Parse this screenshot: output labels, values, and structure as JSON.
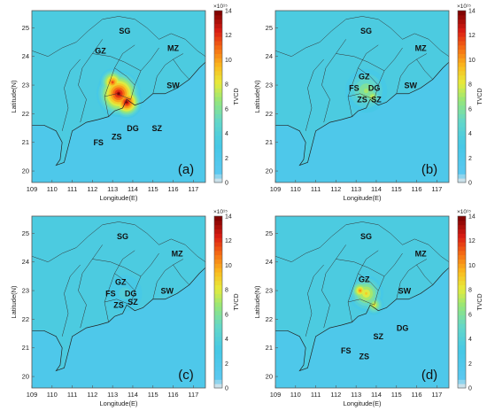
{
  "chart_data": [
    {
      "type": "heatmap",
      "panel_label": "(a)",
      "xlabel": "Longitude(E)",
      "ylabel": "Latitude(N)",
      "xlim": [
        109,
        117.6
      ],
      "ylim": [
        19.6,
        25.6
      ],
      "x_ticks": [
        "109",
        "110",
        "111",
        "112",
        "113",
        "114",
        "115",
        "116",
        "117"
      ],
      "y_ticks": [
        "20",
        "21",
        "22",
        "23",
        "24",
        "25"
      ],
      "colorbar": {
        "label": "TVCD",
        "exponent": "×10¹⁵",
        "range": [
          0,
          14
        ],
        "ticks": [
          "0",
          "2",
          "4",
          "6",
          "8",
          "10",
          "12",
          "14"
        ]
      },
      "hotspots": [
        {
          "lon": 113.3,
          "lat": 22.7,
          "value": 14,
          "spread": 1.0
        },
        {
          "lon": 113.7,
          "lat": 22.4,
          "value": 14,
          "spread": 0.7
        },
        {
          "lon": 113.0,
          "lat": 23.1,
          "value": 12,
          "spread": 0.6
        }
      ],
      "regions": [
        {
          "name": "SG",
          "lon": 113.6,
          "lat": 24.8
        },
        {
          "name": "GZ",
          "lon": 112.4,
          "lat": 24.1
        },
        {
          "name": "MZ",
          "lon": 116.0,
          "lat": 24.2
        },
        {
          "name": "SW",
          "lon": 116.0,
          "lat": 22.9
        },
        {
          "name": "FS",
          "lon": 112.3,
          "lat": 20.9
        },
        {
          "name": "ZS",
          "lon": 113.2,
          "lat": 21.1
        },
        {
          "name": "DG",
          "lon": 114.0,
          "lat": 21.4
        },
        {
          "name": "SZ",
          "lon": 115.2,
          "lat": 21.4
        }
      ]
    },
    {
      "type": "heatmap",
      "panel_label": "(b)",
      "xlabel": "Longitude(E)",
      "ylabel": "Latitude(N)",
      "xlim": [
        109,
        117.6
      ],
      "ylim": [
        19.6,
        25.6
      ],
      "x_ticks": [
        "109",
        "110",
        "111",
        "112",
        "113",
        "114",
        "115",
        "116",
        "117"
      ],
      "y_ticks": [
        "20",
        "21",
        "22",
        "23",
        "24",
        "25"
      ],
      "colorbar": {
        "label": "TVCD",
        "exponent": "×10¹⁵",
        "range": [
          0,
          14
        ],
        "ticks": [
          "0",
          "2",
          "4",
          "6",
          "8",
          "10",
          "12",
          "14"
        ]
      },
      "hotspots": [
        {
          "lon": 113.5,
          "lat": 22.8,
          "value": 7.5,
          "spread": 1.0
        },
        {
          "lon": 113.8,
          "lat": 22.6,
          "value": 8.5,
          "spread": 0.45
        }
      ],
      "regions": [
        {
          "name": "SG",
          "lon": 113.5,
          "lat": 24.8
        },
        {
          "name": "MZ",
          "lon": 116.2,
          "lat": 24.2
        },
        {
          "name": "GZ",
          "lon": 113.4,
          "lat": 23.2
        },
        {
          "name": "FS",
          "lon": 112.9,
          "lat": 22.8
        },
        {
          "name": "DG",
          "lon": 113.9,
          "lat": 22.8
        },
        {
          "name": "ZS",
          "lon": 113.3,
          "lat": 22.4
        },
        {
          "name": "SZ",
          "lon": 114.0,
          "lat": 22.4
        },
        {
          "name": "SW",
          "lon": 115.7,
          "lat": 22.9
        }
      ]
    },
    {
      "type": "heatmap",
      "panel_label": "(c)",
      "xlabel": "Longitude(E)",
      "ylabel": "Latitude(N)",
      "xlim": [
        109,
        117.6
      ],
      "ylim": [
        19.6,
        25.6
      ],
      "x_ticks": [
        "109",
        "110",
        "111",
        "112",
        "113",
        "114",
        "115",
        "116",
        "117"
      ],
      "y_ticks": [
        "20",
        "21",
        "22",
        "23",
        "24",
        "25"
      ],
      "colorbar": {
        "label": "TVCD",
        "exponent": "×10¹⁵",
        "range": [
          0,
          14
        ],
        "ticks": [
          "0",
          "2",
          "4",
          "6",
          "8",
          "10",
          "12",
          "14"
        ]
      },
      "hotspots": [
        {
          "lon": 113.6,
          "lat": 22.9,
          "value": 4.5,
          "spread": 1.0
        }
      ],
      "regions": [
        {
          "name": "SG",
          "lon": 113.5,
          "lat": 24.8
        },
        {
          "name": "MZ",
          "lon": 116.2,
          "lat": 24.2
        },
        {
          "name": "GZ",
          "lon": 113.4,
          "lat": 23.2
        },
        {
          "name": "FS",
          "lon": 112.9,
          "lat": 22.8
        },
        {
          "name": "DG",
          "lon": 113.9,
          "lat": 22.8
        },
        {
          "name": "ZS",
          "lon": 113.3,
          "lat": 22.4
        },
        {
          "name": "SZ",
          "lon": 114.0,
          "lat": 22.5
        },
        {
          "name": "SW",
          "lon": 115.7,
          "lat": 22.9
        }
      ]
    },
    {
      "type": "heatmap",
      "panel_label": "(d)",
      "xlabel": "Longitude(E)",
      "ylabel": "Latitude(N)",
      "xlim": [
        109,
        117.6
      ],
      "ylim": [
        19.6,
        25.6
      ],
      "x_ticks": [
        "109",
        "110",
        "111",
        "112",
        "113",
        "114",
        "115",
        "116",
        "117"
      ],
      "y_ticks": [
        "20",
        "21",
        "22",
        "23",
        "24",
        "25"
      ],
      "colorbar": {
        "label": "TVCD",
        "exponent": "×10¹⁵",
        "range": [
          0,
          14
        ],
        "ticks": [
          "0",
          "2",
          "4",
          "6",
          "8",
          "10",
          "12",
          "14"
        ]
      },
      "hotspots": [
        {
          "lon": 113.5,
          "lat": 22.9,
          "value": 9.5,
          "spread": 0.8
        },
        {
          "lon": 113.2,
          "lat": 23.0,
          "value": 11,
          "spread": 0.45
        },
        {
          "lon": 113.9,
          "lat": 22.5,
          "value": 9,
          "spread": 0.45
        }
      ],
      "regions": [
        {
          "name": "SG",
          "lon": 113.5,
          "lat": 24.8
        },
        {
          "name": "MZ",
          "lon": 116.2,
          "lat": 24.2
        },
        {
          "name": "GZ",
          "lon": 113.4,
          "lat": 23.3
        },
        {
          "name": "SW",
          "lon": 115.4,
          "lat": 22.9
        },
        {
          "name": "FS",
          "lon": 112.5,
          "lat": 20.8
        },
        {
          "name": "ZS",
          "lon": 113.4,
          "lat": 20.6
        },
        {
          "name": "SZ",
          "lon": 114.1,
          "lat": 21.3
        },
        {
          "name": "DG",
          "lon": 115.3,
          "lat": 21.6
        }
      ]
    }
  ]
}
